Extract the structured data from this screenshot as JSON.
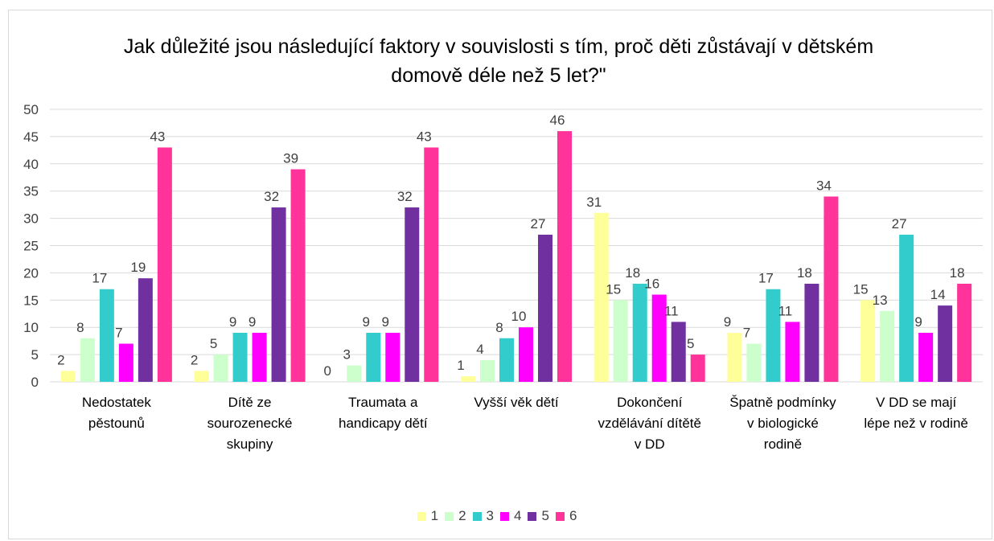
{
  "chart_data": {
    "type": "bar",
    "title": "Jak důležité jsou následující faktory v souvislosti s tím, proč děti zůstávají v dětském domově déle než 5 let?\"",
    "categories": [
      "Nedostatek pěstounů",
      "Dítě ze sourozenecké skupiny",
      "Traumata a handicapy dětí",
      "Vyšší věk dětí",
      "Dokončení vzdělávání dítětě v DD",
      "Špatně podmínky v biologické rodině",
      "V DD se mají lépe než v rodině"
    ],
    "series": [
      {
        "name": "1",
        "color": "#ffff99",
        "values": [
          2,
          2,
          0,
          1,
          31,
          9,
          15
        ]
      },
      {
        "name": "2",
        "color": "#ccffcc",
        "values": [
          8,
          5,
          3,
          4,
          15,
          7,
          13
        ]
      },
      {
        "name": "3",
        "color": "#33cccc",
        "values": [
          17,
          9,
          9,
          8,
          18,
          17,
          27
        ]
      },
      {
        "name": "4",
        "color": "#ff00ff",
        "values": [
          7,
          9,
          9,
          10,
          16,
          11,
          9
        ]
      },
      {
        "name": "5",
        "color": "#7030a0",
        "values": [
          19,
          32,
          32,
          27,
          11,
          18,
          14
        ]
      },
      {
        "name": "6",
        "color": "#ff3399",
        "values": [
          43,
          39,
          43,
          46,
          5,
          34,
          18
        ]
      }
    ],
    "ylim": [
      0,
      50
    ],
    "yticks": [
      0,
      5,
      10,
      15,
      20,
      25,
      30,
      35,
      40,
      45,
      50
    ],
    "grid": true,
    "legend": "bottom"
  }
}
